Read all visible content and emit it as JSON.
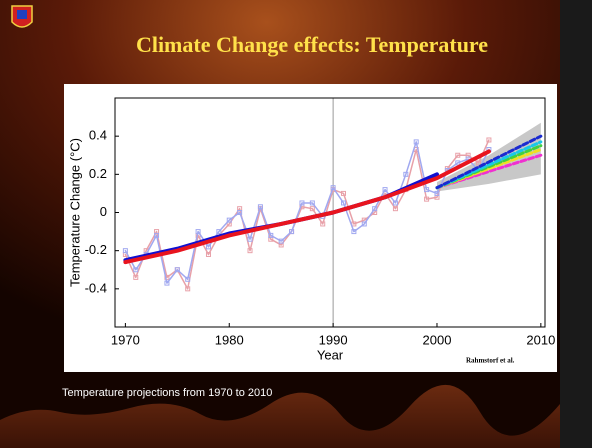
{
  "slide_title": "Climate Change effects: Temperature",
  "caption": "Temperature projections from 1970 to 2010",
  "chart_data": {
    "type": "line",
    "xlabel": "Year",
    "ylabel": "Temperature Change (°C)",
    "annotation": "Rahmstorf et al.",
    "xlim": [
      1969,
      2010.4
    ],
    "ylim": [
      -0.6,
      0.6
    ],
    "xticks": [
      1970,
      1980,
      1990,
      2000,
      2010
    ],
    "yticks": [
      -0.4,
      -0.2,
      0,
      0.2,
      0.4
    ],
    "vline": 1990,
    "band": {
      "color": "#c8c8c8",
      "x": [
        2000,
        2005,
        2010
      ],
      "lower": [
        0.11,
        0.15,
        0.2
      ],
      "upper": [
        0.16,
        0.3,
        0.47
      ]
    },
    "series": [
      {
        "color": "#e8a0a8",
        "marker": "square",
        "x": [
          1970,
          1971,
          1972,
          1973,
          1974,
          1975,
          1976,
          1977,
          1978,
          1979,
          1980,
          1981,
          1982,
          1983,
          1984,
          1985,
          1986,
          1987,
          1988,
          1989,
          1990,
          1991,
          1992,
          1993,
          1994,
          1995,
          1996,
          1997,
          1998,
          1999,
          2000,
          2001,
          2002,
          2003,
          2004,
          2005
        ],
        "values": [
          -0.22,
          -0.34,
          -0.2,
          -0.1,
          -0.34,
          -0.3,
          -0.4,
          -0.12,
          -0.22,
          -0.12,
          -0.06,
          0.02,
          -0.2,
          0.02,
          -0.14,
          -0.17,
          -0.1,
          0.03,
          0.02,
          -0.06,
          0.12,
          0.1,
          -0.06,
          -0.04,
          0.0,
          0.1,
          0.02,
          0.12,
          0.33,
          0.07,
          0.08,
          0.23,
          0.3,
          0.3,
          0.26,
          0.38
        ]
      },
      {
        "color": "#a0a8f0",
        "marker": "square",
        "x": [
          1970,
          1971,
          1972,
          1973,
          1974,
          1975,
          1976,
          1977,
          1978,
          1979,
          1980,
          1981,
          1982,
          1983,
          1984,
          1985,
          1986,
          1987,
          1988,
          1989,
          1990,
          1991,
          1992,
          1993,
          1994,
          1995,
          1996,
          1997,
          1998,
          1999,
          2000,
          2001,
          2002,
          2003,
          2004,
          2005
        ],
        "values": [
          -0.2,
          -0.3,
          -0.22,
          -0.12,
          -0.37,
          -0.3,
          -0.35,
          -0.1,
          -0.18,
          -0.1,
          -0.04,
          0.0,
          -0.14,
          0.03,
          -0.12,
          -0.15,
          -0.1,
          0.05,
          0.05,
          -0.02,
          0.13,
          0.05,
          -0.1,
          -0.06,
          0.02,
          0.12,
          0.05,
          0.2,
          0.37,
          0.12,
          0.1,
          0.22,
          0.26,
          0.28,
          0.22,
          0.33
        ]
      },
      {
        "color": "#1010d0",
        "width": 4,
        "x": [
          1970,
          1975,
          1980,
          1985,
          1990,
          1995,
          2000
        ],
        "values": [
          -0.25,
          -0.19,
          -0.11,
          -0.06,
          0.0,
          0.08,
          0.2
        ]
      },
      {
        "color": "#e8141e",
        "width": 4,
        "x": [
          1970,
          1975,
          1980,
          1985,
          1990,
          1995,
          2000,
          2005
        ],
        "values": [
          -0.26,
          -0.2,
          -0.12,
          -0.06,
          0.0,
          0.08,
          0.18,
          0.32
        ]
      },
      {
        "color": "#f030d0",
        "width": 3,
        "dashed": true,
        "x": [
          2000,
          2010
        ],
        "values": [
          0.13,
          0.3
        ]
      },
      {
        "color": "#f0e020",
        "width": 3,
        "dashed": true,
        "x": [
          2000,
          2010
        ],
        "values": [
          0.13,
          0.33
        ]
      },
      {
        "color": "#40d040",
        "width": 3,
        "dashed": true,
        "x": [
          2000,
          2010
        ],
        "values": [
          0.13,
          0.35
        ]
      },
      {
        "color": "#19c8e8",
        "width": 3,
        "dashed": true,
        "x": [
          2000,
          2010
        ],
        "values": [
          0.13,
          0.37
        ]
      },
      {
        "color": "#1a2ad0",
        "width": 3,
        "dashed": true,
        "x": [
          2000,
          2010
        ],
        "values": [
          0.13,
          0.4
        ]
      }
    ]
  }
}
